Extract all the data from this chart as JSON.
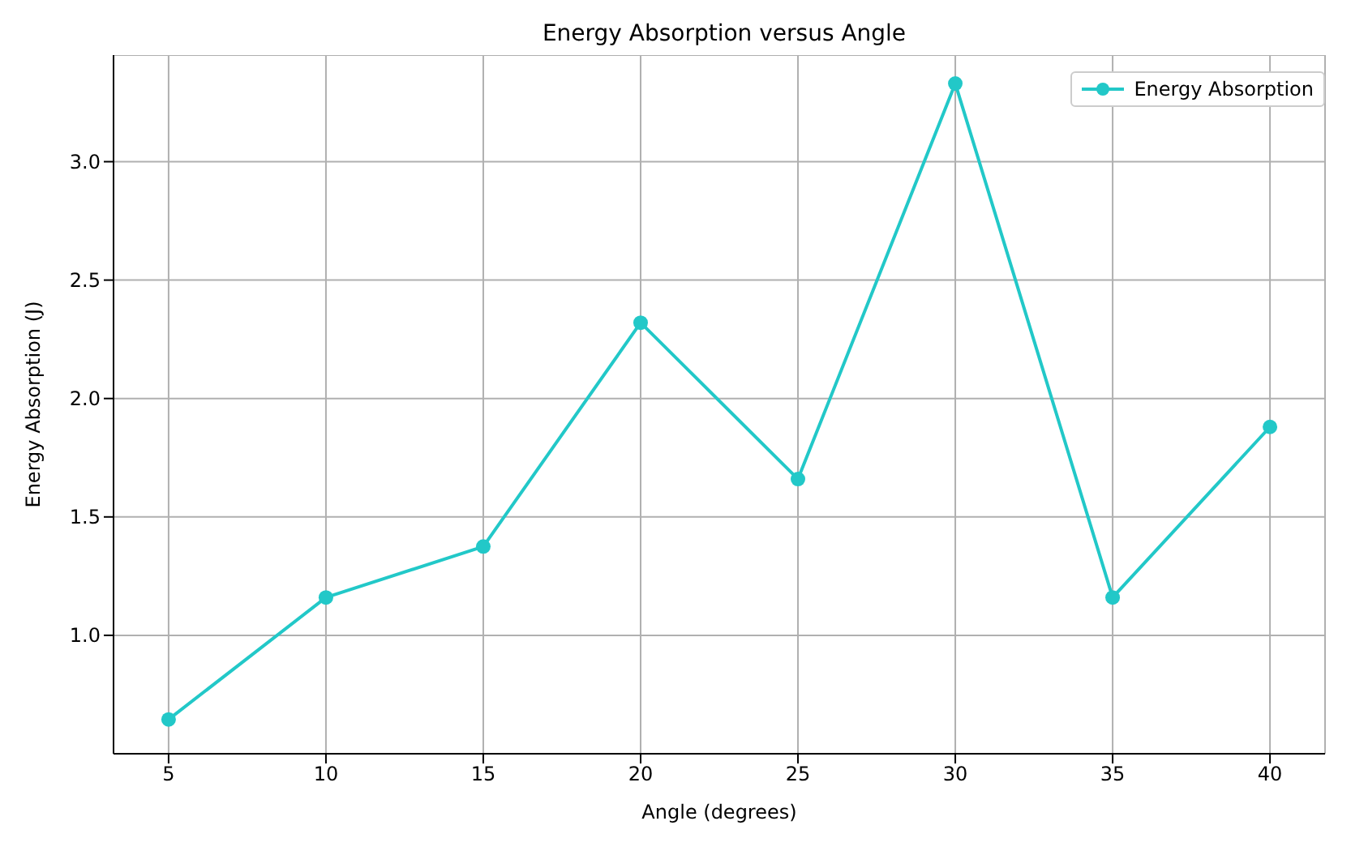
{
  "chart_data": {
    "type": "line",
    "title": "Energy Absorption versus Angle",
    "xlabel": "Angle (degrees)",
    "ylabel": "Energy Absorption (J)",
    "x": [
      5,
      10,
      15,
      20,
      25,
      30,
      35,
      40
    ],
    "series": [
      {
        "name": "Energy Absorption",
        "color": "#22c8c8",
        "values": [
          0.645,
          1.16,
          1.375,
          2.32,
          1.66,
          3.33,
          1.16,
          1.88
        ]
      }
    ],
    "xlim": [
      3.25,
      41.75
    ],
    "ylim": [
      0.5,
      3.45
    ],
    "xticks": [
      5,
      10,
      15,
      20,
      25,
      30,
      35,
      40
    ],
    "yticks": [
      {
        "value": 1,
        "label": "1.0"
      },
      1.5,
      {
        "value": 2,
        "label": "2.0"
      },
      2.5,
      {
        "value": 3,
        "label": "3.0"
      }
    ],
    "grid": true,
    "legend": "top right",
    "marker": "circle",
    "line_style": "solid"
  }
}
